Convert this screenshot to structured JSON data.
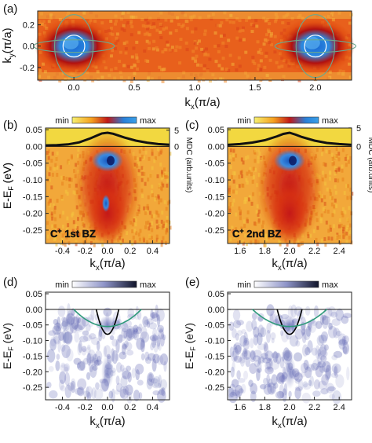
{
  "chart_data": [
    {
      "panel": "(a)",
      "type": "heatmap",
      "xlabel": "kx(π/a)",
      "ylabel": "ky(π/a)",
      "xlim": [
        -0.3,
        2.3
      ],
      "ylim": [
        -0.32,
        0.33
      ],
      "x_ticks": [
        0.0,
        0.5,
        1.0,
        1.5,
        2.0
      ],
      "y_ticks": [
        -0.2,
        0.0,
        0.2
      ],
      "x_tick_labels": [
        "0.0",
        "0.5",
        "1.0",
        "1.5",
        "2.0"
      ],
      "y_tick_labels": [
        "-0.2",
        "0.0",
        "0.2"
      ],
      "intensity_spots": [
        {
          "kx": 0.0,
          "ky": 0.0
        },
        {
          "kx": 2.0,
          "ky": 0.0
        }
      ],
      "fermi_surface_circle_radius": 0.09,
      "fermi_surface_ellipse_radii": [
        0.16,
        0.3
      ]
    },
    {
      "panel": "(b)",
      "type": "heatmap",
      "xlabel": "kx(π/a)",
      "ylabel": "E-EF (eV)",
      "right_label": "MDC (arb.units)",
      "annotation": "C+ 1st BZ",
      "colorbar": {
        "min": "min",
        "max": "max"
      },
      "xlim": [
        -0.55,
        0.55
      ],
      "ylim": [
        -0.29,
        0.055
      ],
      "x_ticks": [
        -0.4,
        -0.2,
        0.0,
        0.2,
        0.4
      ],
      "x_tick_labels": [
        "-0.4",
        "-0.2",
        "0.0",
        "0.2",
        "0.4"
      ],
      "y_ticks": [
        0.05,
        0.0,
        -0.05,
        -0.1,
        -0.15,
        -0.2,
        -0.25
      ],
      "y_tick_labels": [
        "0.05",
        "0.00",
        "-0.05",
        "-0.10",
        "-0.15",
        "-0.20",
        "-0.25"
      ],
      "right_ticks": [
        0,
        5
      ],
      "right_tick_labels": [
        "0",
        "5"
      ],
      "band_bottom": {
        "kx": 0.0,
        "energy": -0.08
      },
      "mdc": {
        "x": [
          -0.55,
          -0.45,
          -0.35,
          -0.25,
          -0.15,
          -0.05,
          0.0,
          0.05,
          0.15,
          0.25,
          0.35,
          0.45,
          0.55
        ],
        "y": [
          0.3,
          0.4,
          0.6,
          1.2,
          2.4,
          3.8,
          4.0,
          3.7,
          2.6,
          1.7,
          1.1,
          0.7,
          0.5
        ]
      }
    },
    {
      "panel": "(c)",
      "type": "heatmap",
      "xlabel": "kx(π/a)",
      "ylabel": "",
      "right_label": "MDC (arb.units)",
      "annotation": "C+ 2nd BZ",
      "colorbar": {
        "min": "min",
        "max": "max"
      },
      "xlim": [
        1.5,
        2.5
      ],
      "ylim": [
        -0.29,
        0.055
      ],
      "x_ticks": [
        1.6,
        1.8,
        2.0,
        2.2,
        2.4
      ],
      "x_tick_labels": [
        "1.6",
        "1.8",
        "2.0",
        "2.2",
        "2.4"
      ],
      "y_ticks": [
        0.05,
        0.0,
        -0.05,
        -0.1,
        -0.15,
        -0.2,
        -0.25
      ],
      "y_tick_labels": [
        "0.05",
        "0.00",
        "-0.05",
        "-0.10",
        "-0.15",
        "-0.20",
        "-0.25"
      ],
      "right_ticks": [
        0,
        5
      ],
      "right_tick_labels": [
        "0",
        "5"
      ],
      "band_bottom": {
        "kx": 2.0,
        "energy": -0.08
      },
      "mdc": {
        "x": [
          1.5,
          1.6,
          1.7,
          1.8,
          1.9,
          1.95,
          2.0,
          2.05,
          2.1,
          2.2,
          2.3,
          2.4,
          2.5
        ],
        "y": [
          0.4,
          0.6,
          1.0,
          1.6,
          2.6,
          3.2,
          3.5,
          3.0,
          2.4,
          1.5,
          0.9,
          0.6,
          0.4
        ]
      }
    },
    {
      "panel": "(d)",
      "type": "heatmap",
      "xlabel": "kx(π/a)",
      "ylabel": "E-EF (eV)",
      "colorbar": {
        "min": "min",
        "max": "max"
      },
      "xlim": [
        -0.55,
        0.55
      ],
      "ylim": [
        -0.29,
        0.055
      ],
      "x_ticks": [
        -0.4,
        -0.2,
        0.0,
        0.2,
        0.4
      ],
      "x_tick_labels": [
        "-0.4",
        "-0.2",
        "0.0",
        "0.2",
        "0.4"
      ],
      "y_ticks": [
        0.05,
        0.0,
        -0.05,
        -0.1,
        -0.15,
        -0.2,
        -0.25
      ],
      "y_tick_labels": [
        "0.05",
        "0.00",
        "-0.05",
        "-0.10",
        "-0.15",
        "-0.20",
        "-0.25"
      ],
      "center": 0.0,
      "bands": [
        {
          "color": "#000000",
          "bottom_energy": -0.08,
          "kf": 0.1
        },
        {
          "color": "#2e9a7a",
          "bottom_energy": -0.055,
          "kf": 0.3
        }
      ]
    },
    {
      "panel": "(e)",
      "type": "heatmap",
      "xlabel": "kx(π/a)",
      "ylabel": "E-EF (eV)",
      "colorbar": {
        "min": "min",
        "max": "max"
      },
      "xlim": [
        1.5,
        2.5
      ],
      "ylim": [
        -0.29,
        0.055
      ],
      "x_ticks": [
        1.6,
        1.8,
        2.0,
        2.2,
        2.4
      ],
      "x_tick_labels": [
        "1.6",
        "1.8",
        "2.0",
        "2.2",
        "2.4"
      ],
      "y_ticks": [
        0.05,
        0.0,
        -0.05,
        -0.1,
        -0.15,
        -0.2,
        -0.25
      ],
      "y_tick_labels": [
        "0.05",
        "0.00",
        "-0.05",
        "-0.10",
        "-0.15",
        "-0.20",
        "-0.25"
      ],
      "center": 2.0,
      "bands": [
        {
          "color": "#000000",
          "bottom_energy": -0.08,
          "kf": 0.1
        },
        {
          "color": "#2e9a7a",
          "bottom_energy": -0.055,
          "kf": 0.3
        }
      ]
    }
  ]
}
